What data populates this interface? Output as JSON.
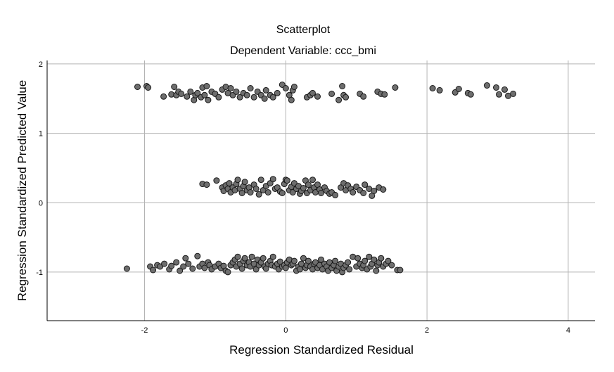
{
  "chart_data": {
    "type": "scatter",
    "title": "Scatterplot",
    "subtitle": "Dependent Variable: ccc_bmi",
    "xlabel": "Regression Standardized Residual",
    "ylabel": "Regression Standardized Predicted Value",
    "xlim": [
      -3.38,
      4.38
    ],
    "ylim": [
      -1.7,
      2.05
    ],
    "x_ticks": [
      -2,
      0,
      2,
      4
    ],
    "x_tick_labels": [
      "-2",
      "0",
      "2",
      "4"
    ],
    "y_ticks": [
      2,
      1,
      0,
      -1
    ],
    "y_tick_labels": [
      "2",
      "1",
      "0",
      "-1"
    ],
    "grid": true,
    "legend": "none",
    "marker_color": "#6e6e6e",
    "series": [
      {
        "points": [
          [
            -2.1,
            1.67
          ],
          [
            -1.97,
            1.68
          ],
          [
            -1.95,
            1.66
          ],
          [
            -1.73,
            1.53
          ],
          [
            -1.62,
            1.56
          ],
          [
            -1.58,
            1.67
          ],
          [
            -1.55,
            1.55
          ],
          [
            -1.52,
            1.6
          ],
          [
            -1.48,
            1.57
          ],
          [
            -1.4,
            1.53
          ],
          [
            -1.35,
            1.6
          ],
          [
            -1.3,
            1.48
          ],
          [
            -1.28,
            1.55
          ],
          [
            -1.25,
            1.58
          ],
          [
            -1.2,
            1.52
          ],
          [
            -1.18,
            1.66
          ],
          [
            -1.15,
            1.55
          ],
          [
            -1.12,
            1.68
          ],
          [
            -1.1,
            1.48
          ],
          [
            -1.05,
            1.6
          ],
          [
            -1.0,
            1.57
          ],
          [
            -0.95,
            1.52
          ],
          [
            -0.9,
            1.63
          ],
          [
            -0.85,
            1.67
          ],
          [
            -0.82,
            1.58
          ],
          [
            -0.78,
            1.65
          ],
          [
            -0.75,
            1.55
          ],
          [
            -0.7,
            1.6
          ],
          [
            -0.65,
            1.52
          ],
          [
            -0.6,
            1.58
          ],
          [
            -0.55,
            1.55
          ],
          [
            -0.5,
            1.65
          ],
          [
            -0.45,
            1.52
          ],
          [
            -0.4,
            1.6
          ],
          [
            -0.35,
            1.55
          ],
          [
            -0.3,
            1.5
          ],
          [
            -0.28,
            1.62
          ],
          [
            -0.22,
            1.55
          ],
          [
            -0.18,
            1.52
          ],
          [
            -0.12,
            1.58
          ],
          [
            -0.05,
            1.7
          ],
          [
            0.0,
            1.65
          ],
          [
            0.05,
            1.55
          ],
          [
            0.08,
            1.48
          ],
          [
            0.1,
            1.62
          ],
          [
            0.12,
            1.67
          ],
          [
            0.3,
            1.52
          ],
          [
            0.35,
            1.55
          ],
          [
            0.38,
            1.58
          ],
          [
            0.45,
            1.53
          ],
          [
            0.65,
            1.57
          ],
          [
            0.75,
            1.48
          ],
          [
            0.8,
            1.68
          ],
          [
            0.82,
            1.55
          ],
          [
            0.85,
            1.52
          ],
          [
            1.05,
            1.57
          ],
          [
            1.1,
            1.53
          ],
          [
            1.3,
            1.6
          ],
          [
            1.35,
            1.57
          ],
          [
            1.4,
            1.56
          ],
          [
            1.55,
            1.66
          ],
          [
            2.08,
            1.65
          ],
          [
            2.18,
            1.62
          ],
          [
            2.4,
            1.59
          ],
          [
            2.45,
            1.64
          ],
          [
            2.58,
            1.58
          ],
          [
            2.62,
            1.56
          ],
          [
            2.85,
            1.69
          ],
          [
            2.98,
            1.66
          ],
          [
            3.02,
            1.56
          ],
          [
            3.1,
            1.63
          ],
          [
            3.15,
            1.54
          ],
          [
            3.22,
            1.57
          ],
          [
            -1.18,
            0.27
          ],
          [
            -1.12,
            0.26
          ],
          [
            -0.98,
            0.32
          ],
          [
            -0.9,
            0.22
          ],
          [
            -0.88,
            0.17
          ],
          [
            -0.85,
            0.25
          ],
          [
            -0.82,
            0.2
          ],
          [
            -0.8,
            0.28
          ],
          [
            -0.78,
            0.15
          ],
          [
            -0.75,
            0.22
          ],
          [
            -0.72,
            0.18
          ],
          [
            -0.7,
            0.27
          ],
          [
            -0.68,
            0.33
          ],
          [
            -0.65,
            0.2
          ],
          [
            -0.62,
            0.14
          ],
          [
            -0.6,
            0.24
          ],
          [
            -0.58,
            0.3
          ],
          [
            -0.55,
            0.18
          ],
          [
            -0.52,
            0.22
          ],
          [
            -0.5,
            0.15
          ],
          [
            -0.45,
            0.26
          ],
          [
            -0.42,
            0.2
          ],
          [
            -0.38,
            0.12
          ],
          [
            -0.35,
            0.33
          ],
          [
            -0.32,
            0.18
          ],
          [
            -0.28,
            0.24
          ],
          [
            -0.25,
            0.15
          ],
          [
            -0.22,
            0.28
          ],
          [
            -0.18,
            0.34
          ],
          [
            -0.15,
            0.2
          ],
          [
            -0.12,
            0.22
          ],
          [
            -0.08,
            0.16
          ],
          [
            -0.05,
            0.14
          ],
          [
            -0.02,
            0.27
          ],
          [
            0.0,
            0.33
          ],
          [
            0.02,
            0.32
          ],
          [
            0.05,
            0.18
          ],
          [
            0.08,
            0.23
          ],
          [
            0.1,
            0.15
          ],
          [
            0.12,
            0.28
          ],
          [
            0.15,
            0.2
          ],
          [
            0.18,
            0.24
          ],
          [
            0.2,
            0.13
          ],
          [
            0.22,
            0.17
          ],
          [
            0.25,
            0.21
          ],
          [
            0.28,
            0.32
          ],
          [
            0.3,
            0.14
          ],
          [
            0.32,
            0.26
          ],
          [
            0.35,
            0.18
          ],
          [
            0.38,
            0.33
          ],
          [
            0.4,
            0.22
          ],
          [
            0.42,
            0.15
          ],
          [
            0.45,
            0.26
          ],
          [
            0.48,
            0.19
          ],
          [
            0.5,
            0.14
          ],
          [
            0.55,
            0.22
          ],
          [
            0.58,
            0.17
          ],
          [
            0.62,
            0.13
          ],
          [
            0.65,
            0.15
          ],
          [
            0.7,
            0.11
          ],
          [
            0.78,
            0.22
          ],
          [
            0.82,
            0.28
          ],
          [
            0.85,
            0.18
          ],
          [
            0.88,
            0.25
          ],
          [
            0.92,
            0.2
          ],
          [
            0.95,
            0.15
          ],
          [
            1.0,
            0.23
          ],
          [
            1.05,
            0.18
          ],
          [
            1.1,
            0.14
          ],
          [
            1.12,
            0.26
          ],
          [
            1.18,
            0.2
          ],
          [
            1.22,
            0.1
          ],
          [
            1.25,
            0.17
          ],
          [
            1.32,
            0.22
          ],
          [
            1.38,
            0.19
          ],
          [
            -2.25,
            -0.95
          ],
          [
            -1.92,
            -0.92
          ],
          [
            -1.88,
            -0.97
          ],
          [
            -1.82,
            -0.9
          ],
          [
            -1.78,
            -0.92
          ],
          [
            -1.72,
            -0.88
          ],
          [
            -1.65,
            -0.96
          ],
          [
            -1.62,
            -0.91
          ],
          [
            -1.55,
            -0.86
          ],
          [
            -1.5,
            -0.98
          ],
          [
            -1.45,
            -0.92
          ],
          [
            -1.42,
            -0.8
          ],
          [
            -1.38,
            -0.88
          ],
          [
            -1.32,
            -0.95
          ],
          [
            -1.25,
            -0.77
          ],
          [
            -1.22,
            -0.92
          ],
          [
            -1.18,
            -0.88
          ],
          [
            -1.15,
            -0.94
          ],
          [
            -1.1,
            -0.86
          ],
          [
            -1.08,
            -0.9
          ],
          [
            -1.05,
            -0.96
          ],
          [
            -1.0,
            -0.92
          ],
          [
            -0.95,
            -0.88
          ],
          [
            -0.92,
            -0.94
          ],
          [
            -0.88,
            -0.91
          ],
          [
            -0.85,
            -0.98
          ],
          [
            -0.82,
            -1.0
          ],
          [
            -0.78,
            -0.9
          ],
          [
            -0.75,
            -0.86
          ],
          [
            -0.72,
            -0.82
          ],
          [
            -0.7,
            -0.92
          ],
          [
            -0.68,
            -0.78
          ],
          [
            -0.65,
            -0.88
          ],
          [
            -0.62,
            -0.95
          ],
          [
            -0.6,
            -0.84
          ],
          [
            -0.58,
            -0.8
          ],
          [
            -0.55,
            -0.9
          ],
          [
            -0.52,
            -0.86
          ],
          [
            -0.5,
            -0.92
          ],
          [
            -0.48,
            -0.78
          ],
          [
            -0.45,
            -0.88
          ],
          [
            -0.42,
            -0.96
          ],
          [
            -0.4,
            -0.82
          ],
          [
            -0.38,
            -0.9
          ],
          [
            -0.35,
            -0.86
          ],
          [
            -0.32,
            -0.8
          ],
          [
            -0.3,
            -0.92
          ],
          [
            -0.28,
            -0.95
          ],
          [
            -0.25,
            -0.88
          ],
          [
            -0.22,
            -0.84
          ],
          [
            -0.2,
            -0.9
          ],
          [
            -0.18,
            -0.78
          ],
          [
            -0.15,
            -0.92
          ],
          [
            -0.12,
            -0.88
          ],
          [
            -0.1,
            -0.96
          ],
          [
            -0.08,
            -0.85
          ],
          [
            -0.05,
            -0.92
          ],
          [
            -0.02,
            -0.9
          ],
          [
            0.0,
            -0.94
          ],
          [
            0.02,
            -0.86
          ],
          [
            0.05,
            -0.82
          ],
          [
            0.08,
            -0.9
          ],
          [
            0.1,
            -0.88
          ],
          [
            0.12,
            -0.84
          ],
          [
            0.15,
            -0.98
          ],
          [
            0.18,
            -0.92
          ],
          [
            0.2,
            -0.96
          ],
          [
            0.22,
            -0.88
          ],
          [
            0.25,
            -0.8
          ],
          [
            0.28,
            -0.94
          ],
          [
            0.3,
            -0.9
          ],
          [
            0.32,
            -0.84
          ],
          [
            0.35,
            -0.92
          ],
          [
            0.38,
            -0.96
          ],
          [
            0.4,
            -0.88
          ],
          [
            0.42,
            -0.86
          ],
          [
            0.45,
            -0.94
          ],
          [
            0.48,
            -0.9
          ],
          [
            0.5,
            -0.82
          ],
          [
            0.52,
            -0.96
          ],
          [
            0.55,
            -0.88
          ],
          [
            0.58,
            -0.92
          ],
          [
            0.6,
            -0.98
          ],
          [
            0.62,
            -0.86
          ],
          [
            0.65,
            -0.94
          ],
          [
            0.68,
            -0.9
          ],
          [
            0.7,
            -0.84
          ],
          [
            0.72,
            -0.98
          ],
          [
            0.75,
            -0.92
          ],
          [
            0.78,
            -0.88
          ],
          [
            0.8,
            -1.0
          ],
          [
            0.82,
            -0.94
          ],
          [
            0.85,
            -0.9
          ],
          [
            0.88,
            -0.86
          ],
          [
            0.9,
            -0.96
          ],
          [
            0.95,
            -0.78
          ],
          [
            1.0,
            -0.92
          ],
          [
            1.02,
            -0.8
          ],
          [
            1.05,
            -0.88
          ],
          [
            1.08,
            -0.94
          ],
          [
            1.1,
            -0.9
          ],
          [
            1.12,
            -0.84
          ],
          [
            1.15,
            -0.96
          ],
          [
            1.18,
            -0.78
          ],
          [
            1.2,
            -0.92
          ],
          [
            1.22,
            -0.88
          ],
          [
            1.25,
            -0.82
          ],
          [
            1.28,
            -0.98
          ],
          [
            1.3,
            -0.9
          ],
          [
            1.32,
            -0.86
          ],
          [
            1.35,
            -0.8
          ],
          [
            1.38,
            -0.92
          ],
          [
            1.42,
            -0.88
          ],
          [
            1.45,
            -0.84
          ],
          [
            1.5,
            -0.9
          ],
          [
            1.58,
            -0.97
          ],
          [
            1.62,
            -0.97
          ]
        ]
      }
    ]
  }
}
